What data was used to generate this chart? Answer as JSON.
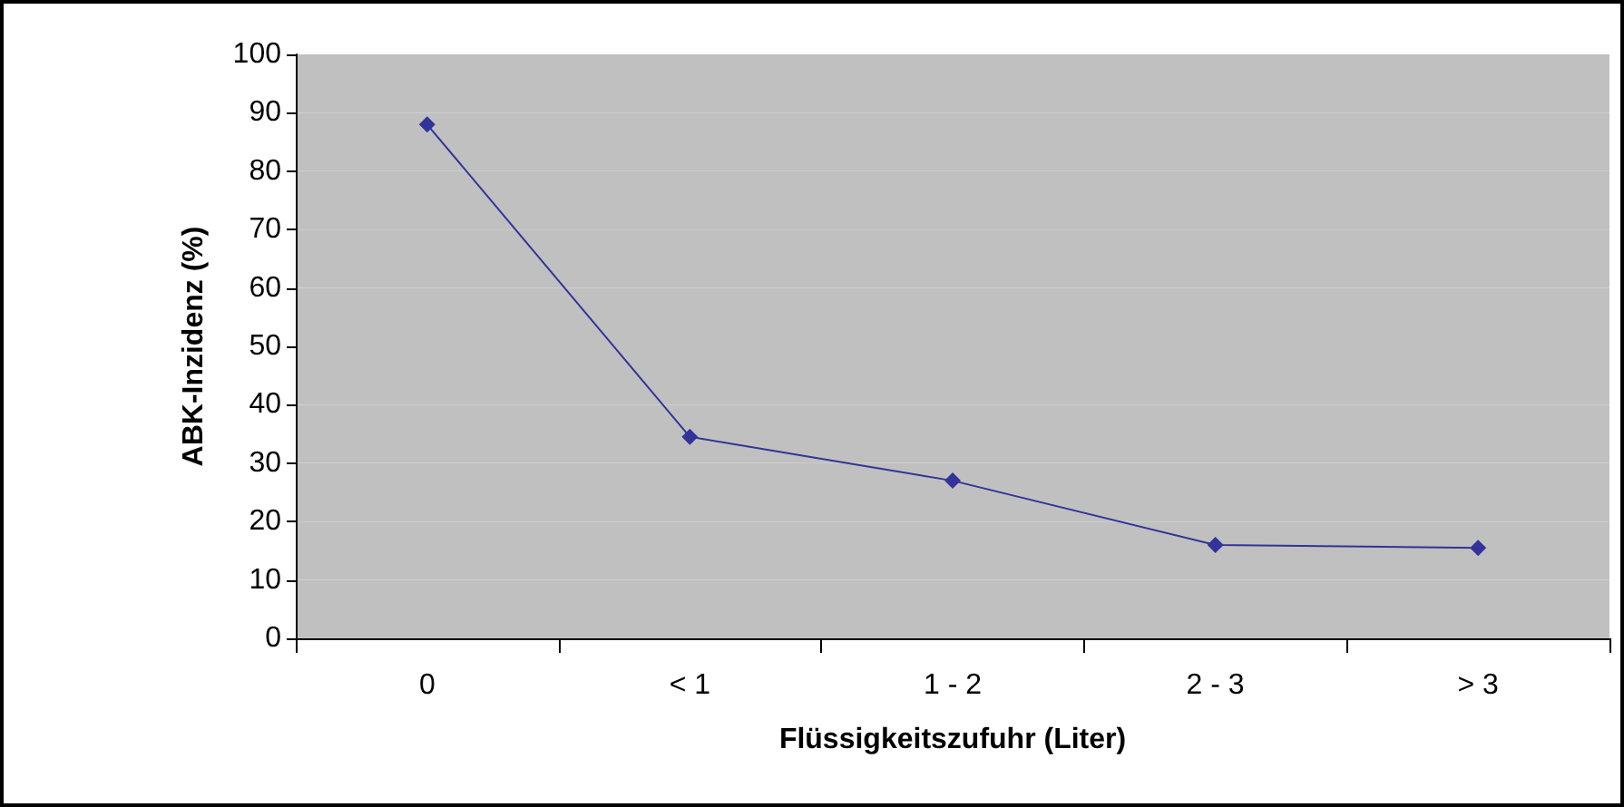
{
  "chart_data": {
    "type": "line",
    "xlabel": "Flüssigkeitszufuhr (Liter)",
    "ylabel": "ABK-Inzidenz (%)",
    "categories": [
      "0",
      "< 1",
      "1 - 2",
      "2 - 3",
      "> 3"
    ],
    "series": [
      {
        "color": "#333399",
        "values": [
          88,
          34.5,
          27,
          16,
          15.5
        ]
      }
    ],
    "ylim": [
      0,
      100
    ],
    "yticks": [
      0,
      10,
      20,
      30,
      40,
      50,
      60,
      70,
      80,
      90,
      100
    ],
    "grid": false,
    "marker": "diamond",
    "line_style": "solid"
  }
}
